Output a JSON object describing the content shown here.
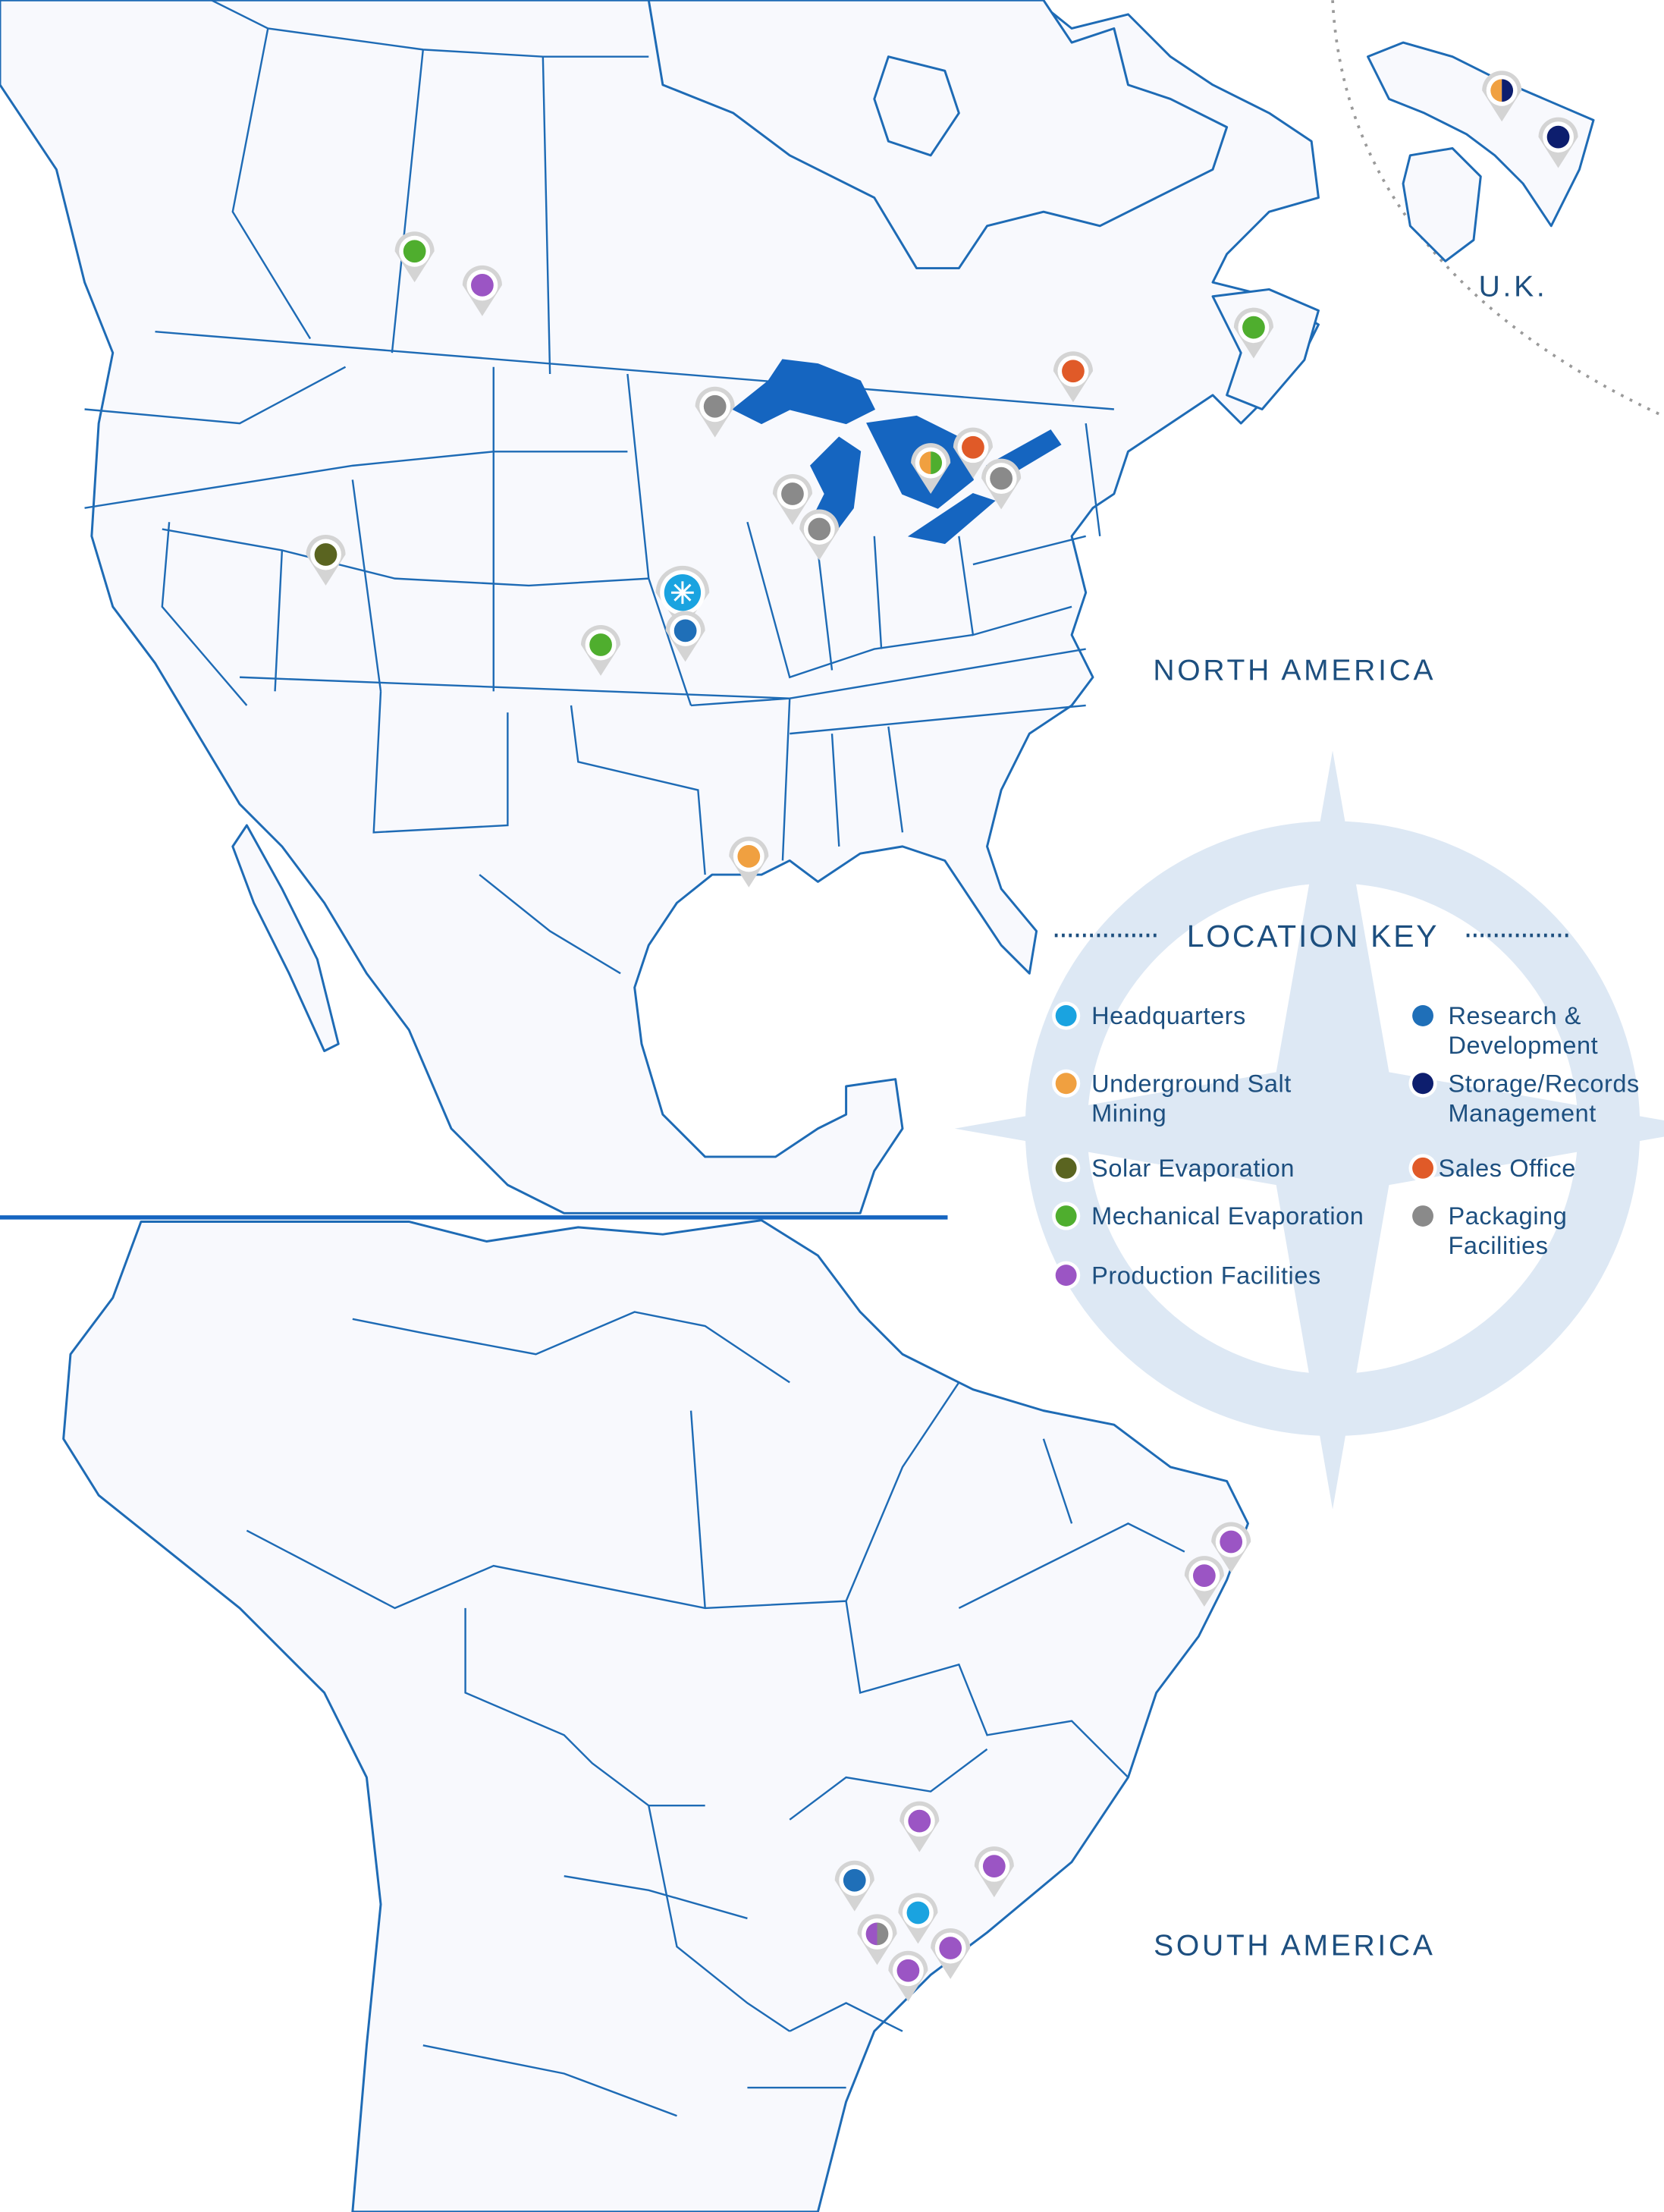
{
  "regions": {
    "north_america": "NORTH AMERICA",
    "south_america": "SOUTH AMERICA",
    "uk": "U.K."
  },
  "legend": {
    "title": "LOCATION KEY",
    "items": [
      {
        "key": "hq",
        "label_lines": [
          "Headquarters"
        ],
        "color": "#1aa3e0"
      },
      {
        "key": "rd",
        "label_lines": [
          "Research &",
          "Development"
        ],
        "color": "#1f6fb8"
      },
      {
        "key": "underground",
        "label_lines": [
          "Underground Salt",
          "Mining"
        ],
        "color": "#f0a040"
      },
      {
        "key": "storage",
        "label_lines": [
          "Storage/Records",
          "Management"
        ],
        "color": "#0d1e6e"
      },
      {
        "key": "solar",
        "label_lines": [
          "Solar Evaporation"
        ],
        "color": "#5a6420"
      },
      {
        "key": "sales",
        "label_lines": [
          "Sales Office"
        ],
        "color": "#e05a28"
      },
      {
        "key": "mech",
        "label_lines": [
          "Mechanical Evaporation"
        ],
        "color": "#4fae2e"
      },
      {
        "key": "packaging",
        "label_lines": [
          "Packaging",
          "Facilities"
        ],
        "color": "#8a8a8a"
      },
      {
        "key": "production",
        "label_lines": [
          "Production Facilities"
        ],
        "color": "#9b55c4"
      }
    ]
  },
  "colors": {
    "map_line": "#1e6bb5",
    "lakes": "#1565c0",
    "compass": "#d9e6f3",
    "pin_ring": "#d4d4d4",
    "text": "#1d4f7f"
  },
  "locations": [
    {
      "region": "north_america",
      "types": [
        "mech"
      ]
    },
    {
      "region": "north_america",
      "types": [
        "production"
      ]
    },
    {
      "region": "north_america",
      "types": [
        "packaging"
      ]
    },
    {
      "region": "north_america",
      "types": [
        "packaging"
      ]
    },
    {
      "region": "north_america",
      "types": [
        "packaging"
      ]
    },
    {
      "region": "north_america",
      "types": [
        "underground",
        "mech"
      ]
    },
    {
      "region": "north_america",
      "types": [
        "sales"
      ]
    },
    {
      "region": "north_america",
      "types": [
        "packaging"
      ]
    },
    {
      "region": "north_america",
      "types": [
        "sales"
      ]
    },
    {
      "region": "north_america",
      "types": [
        "mech"
      ]
    },
    {
      "region": "north_america",
      "types": [
        "solar"
      ]
    },
    {
      "region": "north_america",
      "types": [
        "hq"
      ],
      "icon": "compass-star-icon"
    },
    {
      "region": "north_america",
      "types": [
        "rd"
      ]
    },
    {
      "region": "north_america",
      "types": [
        "mech"
      ]
    },
    {
      "region": "north_america",
      "types": [
        "underground"
      ]
    },
    {
      "region": "uk",
      "types": [
        "underground",
        "storage"
      ]
    },
    {
      "region": "uk",
      "types": [
        "storage"
      ]
    },
    {
      "region": "south_america",
      "types": [
        "production"
      ]
    },
    {
      "region": "south_america",
      "types": [
        "production"
      ]
    },
    {
      "region": "south_america",
      "types": [
        "production"
      ]
    },
    {
      "region": "south_america",
      "types": [
        "production"
      ]
    },
    {
      "region": "south_america",
      "types": [
        "rd"
      ]
    },
    {
      "region": "south_america",
      "types": [
        "hq"
      ]
    },
    {
      "region": "south_america",
      "types": [
        "production",
        "packaging"
      ]
    },
    {
      "region": "south_america",
      "types": [
        "production"
      ]
    },
    {
      "region": "south_america",
      "types": [
        "production"
      ]
    }
  ]
}
